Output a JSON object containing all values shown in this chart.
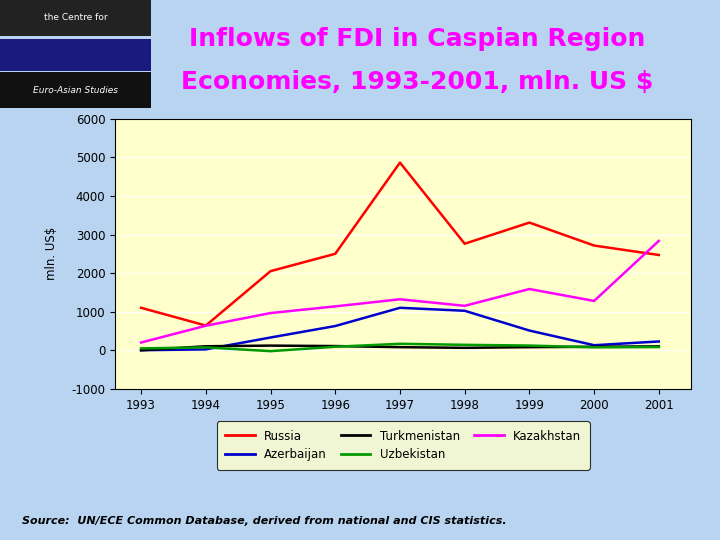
{
  "years": [
    1993,
    1994,
    1995,
    1996,
    1997,
    1998,
    1999,
    2000,
    2001
  ],
  "russia": [
    1100,
    640,
    2050,
    2500,
    4865,
    2761,
    3309,
    2714,
    2469
  ],
  "azerbaijan": [
    0,
    22,
    330,
    627,
    1100,
    1023,
    510,
    130,
    227
  ],
  "turkmenistan": [
    0,
    103,
    120,
    108,
    80,
    62,
    80,
    90,
    100
  ],
  "uzbekistan": [
    48,
    73,
    -24,
    90,
    167,
    140,
    121,
    75,
    83
  ],
  "kazakhstan": [
    200,
    635,
    964,
    1137,
    1321,
    1151,
    1587,
    1278,
    2835
  ],
  "russia_color": "#ff0000",
  "azerbaijan_color": "#0000cc",
  "turkmenistan_color": "#000000",
  "uzbekistan_color": "#009900",
  "kazakhstan_color": "#ff00ff",
  "title_line1": "Inflows of FDI in Caspian Region",
  "title_line2": "Economies, 1993-2001, mln. US $",
  "ylabel": "mln. US$",
  "ylim": [
    -1000,
    6000
  ],
  "yticks": [
    -1000,
    0,
    1000,
    2000,
    3000,
    4000,
    5000,
    6000
  ],
  "source_text": "Source:  UN/ECE Common Database, derived from national and CIS statistics.",
  "chart_bg": "#ffffcc",
  "outer_bg": "#b8d4f0",
  "title_color": "#ff00ff",
  "title_fontsize": 18
}
